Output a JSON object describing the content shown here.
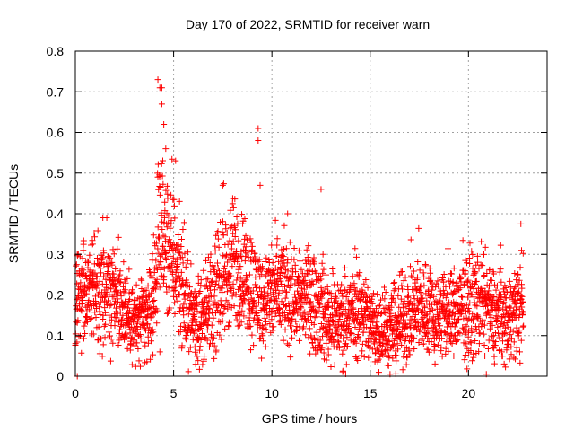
{
  "chart_data": {
    "type": "scatter",
    "title": "Day 170 of 2022, SRMTID for receiver warn",
    "xlabel": "GPS time / hours",
    "ylabel": "SRMTID / TECUs",
    "xlim": [
      0,
      24
    ],
    "ylim": [
      0,
      0.8
    ],
    "xticks": [
      0,
      5,
      10,
      15,
      20
    ],
    "yticks": [
      0,
      0.1,
      0.2,
      0.3,
      0.4,
      0.5,
      0.6,
      0.7,
      0.8
    ],
    "xtick_labels": [
      "0",
      "5",
      "10",
      "15",
      "20"
    ],
    "ytick_labels": [
      "0",
      "0.1",
      "0.2",
      "0.3",
      "0.4",
      "0.5",
      "0.6",
      "0.7",
      "0.8"
    ],
    "grid": true,
    "marker": "+",
    "color": "#ff0000",
    "sampling_interval_hours": 0.00833,
    "trend": [
      [
        0.0,
        0.17
      ],
      [
        0.3,
        0.2
      ],
      [
        0.6,
        0.22
      ],
      [
        1.0,
        0.21
      ],
      [
        1.5,
        0.2
      ],
      [
        2.0,
        0.2
      ],
      [
        2.5,
        0.17
      ],
      [
        3.0,
        0.13
      ],
      [
        3.5,
        0.13
      ],
      [
        4.0,
        0.2
      ],
      [
        4.3,
        0.35
      ],
      [
        4.5,
        0.33
      ],
      [
        4.8,
        0.3
      ],
      [
        5.2,
        0.27
      ],
      [
        5.6,
        0.18
      ],
      [
        6.0,
        0.14
      ],
      [
        6.5,
        0.14
      ],
      [
        7.0,
        0.18
      ],
      [
        7.5,
        0.24
      ],
      [
        8.0,
        0.28
      ],
      [
        8.5,
        0.26
      ],
      [
        9.0,
        0.22
      ],
      [
        9.5,
        0.18
      ],
      [
        10.0,
        0.2
      ],
      [
        10.5,
        0.21
      ],
      [
        11.0,
        0.19
      ],
      [
        11.5,
        0.2
      ],
      [
        12.0,
        0.18
      ],
      [
        12.5,
        0.16
      ],
      [
        13.0,
        0.14
      ],
      [
        13.5,
        0.14
      ],
      [
        14.0,
        0.15
      ],
      [
        14.5,
        0.16
      ],
      [
        15.0,
        0.13
      ],
      [
        15.5,
        0.12
      ],
      [
        16.0,
        0.11
      ],
      [
        16.5,
        0.13
      ],
      [
        17.0,
        0.15
      ],
      [
        17.5,
        0.17
      ],
      [
        18.0,
        0.16
      ],
      [
        18.5,
        0.15
      ],
      [
        19.0,
        0.15
      ],
      [
        19.5,
        0.16
      ],
      [
        20.0,
        0.17
      ],
      [
        20.5,
        0.18
      ],
      [
        21.0,
        0.16
      ],
      [
        21.5,
        0.15
      ],
      [
        22.0,
        0.14
      ],
      [
        22.5,
        0.16
      ],
      [
        22.8,
        0.18
      ]
    ],
    "notable_points": [
      [
        0.1,
        0.3
      ],
      [
        0.1,
        0.0
      ],
      [
        0.4,
        0.31
      ],
      [
        1.4,
        0.39
      ],
      [
        1.6,
        0.39
      ],
      [
        4.2,
        0.73
      ],
      [
        4.3,
        0.71
      ],
      [
        4.4,
        0.71
      ],
      [
        4.4,
        0.67
      ],
      [
        4.5,
        0.62
      ],
      [
        4.6,
        0.56
      ],
      [
        4.3,
        0.06
      ],
      [
        5.1,
        0.53
      ],
      [
        5.3,
        0.43
      ],
      [
        7.5,
        0.47
      ],
      [
        9.3,
        0.61
      ],
      [
        9.3,
        0.58
      ],
      [
        9.4,
        0.47
      ],
      [
        10.8,
        0.4
      ],
      [
        12.5,
        0.46
      ],
      [
        12.6,
        0.3
      ],
      [
        18.3,
        0.03
      ],
      [
        22.7,
        0.31
      ]
    ]
  }
}
